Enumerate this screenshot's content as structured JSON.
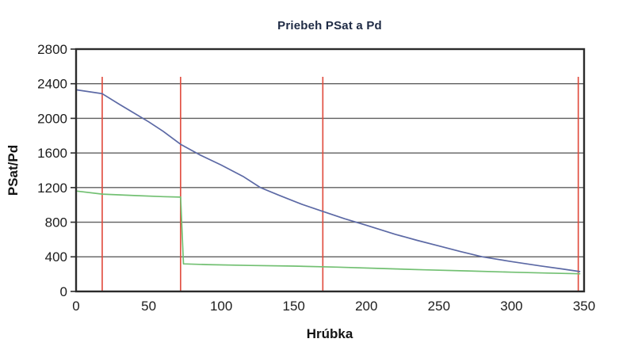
{
  "chart_data": {
    "type": "line",
    "title": "Priebeh PSat a Pd",
    "xlabel": "Hrúbka",
    "ylabel": "PSat/Pd",
    "xlim": [
      0,
      350
    ],
    "ylim": [
      0,
      2800
    ],
    "x_ticks": [
      0,
      50,
      100,
      150,
      200,
      250,
      300,
      350
    ],
    "y_ticks": [
      0,
      400,
      800,
      1200,
      1600,
      2000,
      2400,
      2800
    ],
    "grid": "horizontal-only",
    "legend": "none",
    "colors": {
      "frame": "#2b2b2b",
      "gridline": "#5f5f5f",
      "marker_line": "#e0483a",
      "series_psat": "#5c69a5",
      "series_pd": "#72c072",
      "title_text": "#1f2b45",
      "label_text": "#1c1c1c"
    },
    "series": [
      {
        "name": "PSat",
        "color": "#5c69a5",
        "x": [
          0,
          18,
          30,
          40,
          50,
          60,
          72,
          85,
          100,
          115,
          127,
          140,
          155,
          170,
          185,
          200,
          220,
          235,
          250,
          265,
          280,
          300,
          320,
          335,
          347
        ],
        "y": [
          2330,
          2285,
          2160,
          2060,
          1960,
          1850,
          1700,
          1580,
          1460,
          1330,
          1200,
          1110,
          1010,
          925,
          840,
          765,
          660,
          590,
          525,
          460,
          400,
          345,
          295,
          260,
          230
        ]
      },
      {
        "name": "Pd",
        "color": "#72c072",
        "x": [
          0,
          18,
          40,
          60,
          72,
          74,
          90,
          120,
          150,
          180,
          210,
          240,
          270,
          300,
          325,
          347
        ],
        "y": [
          1160,
          1125,
          1108,
          1095,
          1090,
          318,
          310,
          300,
          293,
          281,
          265,
          250,
          237,
          222,
          212,
          204
        ]
      }
    ],
    "vertical_marker_lines": {
      "color": "#e0483a",
      "x": [
        18,
        72,
        170,
        346
      ],
      "y_bottom": 0,
      "y_top": 2480
    }
  }
}
